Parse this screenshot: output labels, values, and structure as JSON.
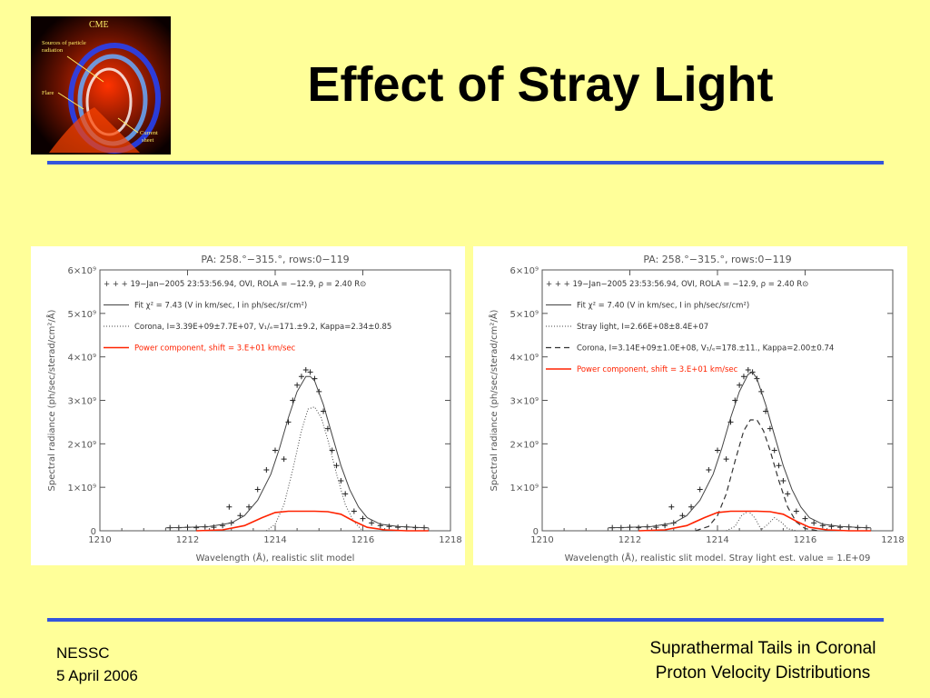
{
  "slide": {
    "title": "Effect of Stray Light",
    "footer_left_line1": "NESSC",
    "footer_left_line2": "5 April 2006",
    "footer_right_line1": "Suprathermal Tails in Coronal",
    "footer_right_line2": "Proton Velocity Distributions"
  },
  "logo": {
    "label_cme": "CME",
    "label_sources": "Sources of particle",
    "label_radiation": "radiation",
    "label_flare": "Flare",
    "label_current": "Current",
    "label_sheet": "sheet"
  },
  "colors": {
    "background": "#ffff99",
    "rule": "#3355dd",
    "power_component": "#ff2200"
  },
  "chart_data": [
    {
      "type": "line",
      "title": "PA: 258.°−315.°, rows:0−119",
      "xlabel": "Wavelength (Å), realistic slit model",
      "ylabel": "Spectral radiance (ph/sec/sterad/cm²/Å)",
      "xlim": [
        1210,
        1218
      ],
      "ylim": [
        0,
        6000000000.0
      ],
      "xticks": [
        "1210",
        "1212",
        "1214",
        "1216",
        "1218"
      ],
      "yticks": [
        "0",
        "1×10⁹",
        "2×10⁹",
        "3×10⁹",
        "4×10⁹",
        "5×10⁹",
        "6×10⁹"
      ],
      "legend": [
        "+ + +  19−Jan−2005 23:53:56.94, OVI, ROLA = −12.9, ρ = 2.40 R⊙",
        "Fit χ² = 7.43 (V in km/sec, I in  ph/sec/sr/cm²)",
        "Corona, I=3.39E+09±7.7E+07, V₁/ₑ=171.±9.2, Kappa=2.34±0.85",
        "Power component, shift = 3.E+01 km/sec"
      ],
      "series": [
        {
          "name": "19−Jan−2005 23:53:56.94, OVI, ROLA = −12.9, ρ = 2.40 R⊙",
          "style": "plus",
          "x": [
            1211.6,
            1211.8,
            1212.0,
            1212.2,
            1212.4,
            1212.6,
            1212.8,
            1212.95,
            1213.0,
            1213.2,
            1213.4,
            1213.6,
            1213.8,
            1214.0,
            1214.2,
            1214.3,
            1214.4,
            1214.5,
            1214.6,
            1214.7,
            1214.8,
            1214.9,
            1215.0,
            1215.1,
            1215.2,
            1215.3,
            1215.4,
            1215.5,
            1215.6,
            1215.8,
            1216.0,
            1216.2,
            1216.4,
            1216.6,
            1216.8,
            1217.0,
            1217.2,
            1217.4
          ],
          "y": [
            70000000.0,
            70000000.0,
            80000000.0,
            70000000.0,
            90000000.0,
            80000000.0,
            120000000.0,
            550000000.0,
            180000000.0,
            350000000.0,
            550000000.0,
            950000000.0,
            1400000000.0,
            1850000000.0,
            1650000000.0,
            2500000000.0,
            3000000000.0,
            3350000000.0,
            3550000000.0,
            3700000000.0,
            3650000000.0,
            3500000000.0,
            3200000000.0,
            2750000000.0,
            2350000000.0,
            1850000000.0,
            1500000000.0,
            1150000000.0,
            850000000.0,
            450000000.0,
            280000000.0,
            180000000.0,
            120000000.0,
            100000000.0,
            80000000.0,
            90000000.0,
            70000000.0,
            70000000.0
          ]
        },
        {
          "name": "Fit",
          "style": "solid",
          "x": [
            1211.5,
            1212.0,
            1212.5,
            1213.0,
            1213.3,
            1213.6,
            1213.9,
            1214.1,
            1214.3,
            1214.5,
            1214.7,
            1214.8,
            1214.9,
            1215.1,
            1215.3,
            1215.5,
            1215.7,
            1215.9,
            1216.1,
            1216.4,
            1216.8,
            1217.2,
            1217.5
          ],
          "y": [
            70000000.0,
            80000000.0,
            100000000.0,
            180000000.0,
            350000000.0,
            700000000.0,
            1300000000.0,
            1900000000.0,
            2600000000.0,
            3200000000.0,
            3550000000.0,
            3550000000.0,
            3450000000.0,
            2900000000.0,
            2200000000.0,
            1500000000.0,
            950000000.0,
            550000000.0,
            300000000.0,
            150000000.0,
            100000000.0,
            80000000.0,
            70000000.0
          ]
        },
        {
          "name": "Corona",
          "style": "dotted",
          "x": [
            1213.8,
            1214.0,
            1214.2,
            1214.4,
            1214.6,
            1214.75,
            1214.9,
            1215.05,
            1215.2,
            1215.4,
            1215.6,
            1215.8,
            1216.0
          ],
          "y": [
            0.0,
            150000000.0,
            600000000.0,
            1400000000.0,
            2300000000.0,
            2800000000.0,
            2850000000.0,
            2600000000.0,
            2100000000.0,
            1300000000.0,
            600000000.0,
            200000000.0,
            0.0
          ]
        },
        {
          "name": "Power component",
          "style": "red",
          "x": [
            1212.2,
            1212.8,
            1213.3,
            1213.7,
            1214.0,
            1214.3,
            1214.6,
            1214.9,
            1215.2,
            1215.5,
            1215.8,
            1216.1,
            1216.5,
            1217.0,
            1217.5
          ],
          "y": [
            0.0,
            20000000.0,
            120000000.0,
            300000000.0,
            420000000.0,
            450000000.0,
            450000000.0,
            450000000.0,
            440000000.0,
            380000000.0,
            220000000.0,
            80000000.0,
            20000000.0,
            0.0,
            0.0
          ]
        }
      ]
    },
    {
      "type": "line",
      "title": "PA: 258.°−315.°, rows:0−119",
      "xlabel": "Wavelength (Å), realistic slit model. Stray light est. value = 1.E+09",
      "ylabel": "Spectral radiance (ph/sec/sterad/cm²/Å)",
      "xlim": [
        1210,
        1218
      ],
      "ylim": [
        0,
        6000000000.0
      ],
      "xticks": [
        "1210",
        "1212",
        "1214",
        "1216",
        "1218"
      ],
      "yticks": [
        "0",
        "1×10⁹",
        "2×10⁹",
        "3×10⁹",
        "4×10⁹",
        "5×10⁹",
        "6×10⁹"
      ],
      "legend": [
        "+ + +  19−Jan−2005 23:53:56.94, OVI, ROLA = −12.9, ρ = 2.40 R⊙",
        "Fit χ² = 7.40 (V in km/sec, I in  ph/sec/sr/cm²)",
        "Stray light, I=2.66E+08±8.4E+07",
        "Corona, I=3.14E+09±1.0E+08, V₁/ₑ=178.±11., Kappa=2.00±0.74",
        "Power component, shift = 3.E+01 km/sec"
      ],
      "series": [
        {
          "name": "19−Jan−2005 23:53:56.94, OVI, ROLA = −12.9, ρ = 2.40 R⊙",
          "style": "plus",
          "x": [
            1211.6,
            1211.8,
            1212.0,
            1212.2,
            1212.4,
            1212.6,
            1212.8,
            1212.95,
            1213.0,
            1213.2,
            1213.4,
            1213.6,
            1213.8,
            1214.0,
            1214.2,
            1214.3,
            1214.4,
            1214.5,
            1214.6,
            1214.7,
            1214.8,
            1214.9,
            1215.0,
            1215.1,
            1215.2,
            1215.3,
            1215.4,
            1215.5,
            1215.6,
            1215.8,
            1216.0,
            1216.2,
            1216.4,
            1216.6,
            1216.8,
            1217.0,
            1217.2,
            1217.4
          ],
          "y": [
            70000000.0,
            70000000.0,
            80000000.0,
            70000000.0,
            90000000.0,
            80000000.0,
            120000000.0,
            550000000.0,
            180000000.0,
            350000000.0,
            550000000.0,
            950000000.0,
            1400000000.0,
            1850000000.0,
            1650000000.0,
            2500000000.0,
            3000000000.0,
            3350000000.0,
            3550000000.0,
            3700000000.0,
            3650000000.0,
            3500000000.0,
            3200000000.0,
            2750000000.0,
            2350000000.0,
            1850000000.0,
            1500000000.0,
            1150000000.0,
            850000000.0,
            450000000.0,
            280000000.0,
            180000000.0,
            120000000.0,
            100000000.0,
            80000000.0,
            90000000.0,
            70000000.0,
            70000000.0
          ]
        },
        {
          "name": "Fit",
          "style": "solid",
          "x": [
            1211.5,
            1212.0,
            1212.5,
            1213.0,
            1213.3,
            1213.6,
            1213.9,
            1214.1,
            1214.3,
            1214.5,
            1214.7,
            1214.8,
            1214.9,
            1215.1,
            1215.3,
            1215.5,
            1215.7,
            1215.9,
            1216.1,
            1216.4,
            1216.8,
            1217.2,
            1217.5
          ],
          "y": [
            70000000.0,
            80000000.0,
            100000000.0,
            180000000.0,
            350000000.0,
            700000000.0,
            1300000000.0,
            1900000000.0,
            2600000000.0,
            3200000000.0,
            3600000000.0,
            3650000000.0,
            3500000000.0,
            2900000000.0,
            2200000000.0,
            1500000000.0,
            950000000.0,
            550000000.0,
            300000000.0,
            150000000.0,
            100000000.0,
            80000000.0,
            70000000.0
          ]
        },
        {
          "name": "Stray light",
          "style": "dotted",
          "x": [
            1214.2,
            1214.4,
            1214.55,
            1214.7,
            1214.85,
            1215.0,
            1215.15,
            1215.3,
            1215.45,
            1215.6,
            1215.8
          ],
          "y": [
            0.0,
            100000000.0,
            350000000.0,
            450000000.0,
            300000000.0,
            20000000.0,
            150000000.0,
            300000000.0,
            200000000.0,
            50000000.0,
            0.0
          ]
        },
        {
          "name": "Corona",
          "style": "dashed",
          "x": [
            1213.5,
            1213.8,
            1214.0,
            1214.2,
            1214.4,
            1214.6,
            1214.75,
            1214.9,
            1215.05,
            1215.2,
            1215.4,
            1215.6,
            1215.8,
            1216.0,
            1216.3
          ],
          "y": [
            0.0,
            100000000.0,
            350000000.0,
            850000000.0,
            1600000000.0,
            2300000000.0,
            2550000000.0,
            2550000000.0,
            2300000000.0,
            1850000000.0,
            1150000000.0,
            550000000.0,
            200000000.0,
            50000000.0,
            0.0
          ]
        },
        {
          "name": "Power component",
          "style": "red",
          "x": [
            1212.2,
            1212.8,
            1213.3,
            1213.7,
            1214.0,
            1214.3,
            1214.6,
            1214.9,
            1215.2,
            1215.5,
            1215.8,
            1216.1,
            1216.5,
            1217.0,
            1217.5
          ],
          "y": [
            0.0,
            20000000.0,
            120000000.0,
            300000000.0,
            420000000.0,
            450000000.0,
            450000000.0,
            450000000.0,
            440000000.0,
            380000000.0,
            220000000.0,
            80000000.0,
            20000000.0,
            0.0,
            0.0
          ]
        }
      ]
    }
  ]
}
